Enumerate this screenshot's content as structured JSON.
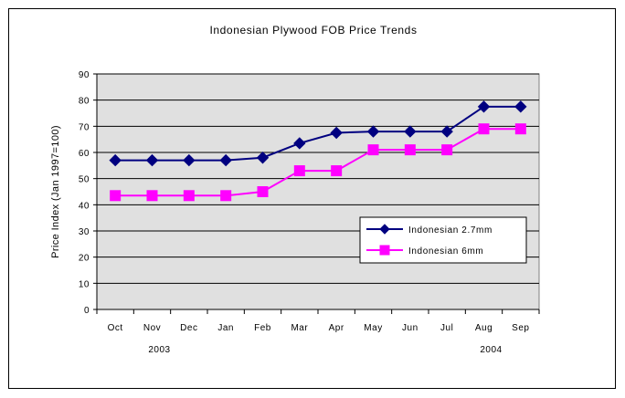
{
  "chart_data": {
    "type": "line",
    "title": "Indonesian Plywood FOB Price Trends",
    "xlabel": "",
    "ylabel": "Price Index (Jan 1997=100)",
    "categories": [
      "Oct",
      "Nov",
      "Dec",
      "Jan",
      "Feb",
      "Mar",
      "Apr",
      "May",
      "Jun",
      "Jul",
      "Aug",
      "Sep"
    ],
    "year_labels": [
      {
        "label": "2003",
        "at_category": "Nov"
      },
      {
        "label": "2004",
        "at_category": "Aug"
      }
    ],
    "ylim": [
      0,
      90
    ],
    "yticks": [
      0,
      10,
      20,
      30,
      40,
      50,
      60,
      70,
      80,
      90
    ],
    "grid": true,
    "legend_position": "lower-right",
    "series": [
      {
        "name": "Indonesian 2.7mm",
        "color": "#000080",
        "marker": "diamond",
        "values": [
          57,
          57,
          57,
          57,
          58,
          63.5,
          67.5,
          68,
          68,
          68,
          77.5,
          77.5
        ]
      },
      {
        "name": "Indonesian 6mm",
        "color": "#ff00ff",
        "marker": "square",
        "values": [
          43.5,
          43.5,
          43.5,
          43.5,
          45,
          53,
          53,
          61,
          61,
          61,
          69,
          69
        ]
      }
    ],
    "plot_background": "#e0e0e0"
  }
}
